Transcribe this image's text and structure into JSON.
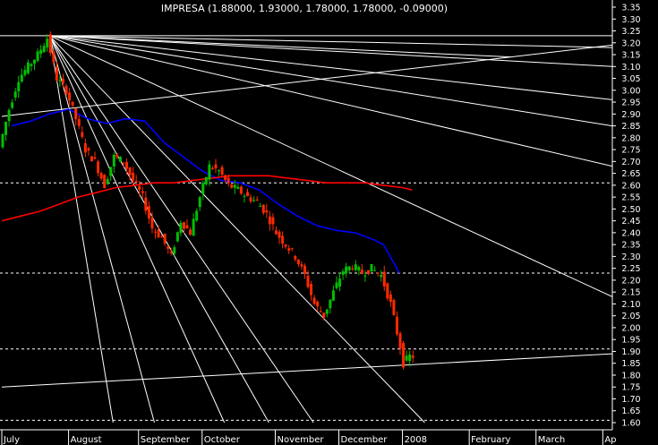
{
  "chart_data": {
    "type": "candlestick",
    "title": "IMPRESA (1.88000, 1.93000, 1.78000, 1.78000, -0.09000)",
    "xlabel": "",
    "ylabel": "",
    "ylim": [
      1.6,
      3.38
    ],
    "y_ticks": [
      "3.35",
      "3.30",
      "3.25",
      "3.20",
      "3.15",
      "3.10",
      "3.05",
      "3.00",
      "2.95",
      "2.90",
      "2.85",
      "2.80",
      "2.75",
      "2.70",
      "2.65",
      "2.60",
      "2.55",
      "2.50",
      "2.45",
      "2.40",
      "2.35",
      "2.30",
      "2.25",
      "2.20",
      "2.15",
      "2.10",
      "2.05",
      "2.00",
      "1.95",
      "1.90",
      "1.85",
      "1.80",
      "1.75",
      "1.70",
      "1.65",
      "1.60"
    ],
    "month_labels": [
      {
        "label": "July",
        "day": 0
      },
      {
        "label": "August",
        "day": 21
      },
      {
        "label": "September",
        "day": 43
      },
      {
        "label": "October",
        "day": 63
      },
      {
        "label": "November",
        "day": 86
      },
      {
        "label": "December",
        "day": 106
      },
      {
        "label": "2008",
        "day": 126
      },
      {
        "label": "February",
        "day": 147
      },
      {
        "label": "March",
        "day": 168
      },
      {
        "label": "Ap",
        "day": 189
      }
    ],
    "x_max_day": 192,
    "anchors": {
      "open": [
        [
          0,
          2.76
        ],
        [
          3,
          2.92
        ],
        [
          6,
          3.05
        ],
        [
          9,
          3.1
        ],
        [
          12,
          3.15
        ],
        [
          15,
          3.22
        ],
        [
          18,
          3.05
        ],
        [
          21,
          3.0
        ],
        [
          24,
          2.88
        ],
        [
          27,
          2.75
        ],
        [
          30,
          2.7
        ],
        [
          33,
          2.6
        ],
        [
          36,
          2.72
        ],
        [
          39,
          2.7
        ],
        [
          42,
          2.62
        ],
        [
          45,
          2.55
        ],
        [
          48,
          2.42
        ],
        [
          51,
          2.38
        ],
        [
          54,
          2.3
        ],
        [
          57,
          2.45
        ],
        [
          60,
          2.4
        ],
        [
          63,
          2.55
        ],
        [
          66,
          2.68
        ],
        [
          69,
          2.66
        ],
        [
          72,
          2.6
        ],
        [
          75,
          2.58
        ],
        [
          78,
          2.55
        ],
        [
          81,
          2.53
        ],
        [
          84,
          2.48
        ],
        [
          87,
          2.4
        ],
        [
          90,
          2.35
        ],
        [
          93,
          2.3
        ],
        [
          96,
          2.22
        ],
        [
          99,
          2.1
        ],
        [
          102,
          2.05
        ],
        [
          105,
          2.15
        ],
        [
          108,
          2.24
        ],
        [
          111,
          2.26
        ],
        [
          114,
          2.23
        ],
        [
          117,
          2.25
        ],
        [
          120,
          2.22
        ],
        [
          123,
          2.1
        ],
        [
          126,
          1.92
        ],
        [
          127,
          1.85
        ],
        [
          129,
          1.88
        ]
      ],
      "volatility": 0.035
    },
    "series": [
      {
        "name": "",
        "color": "#0000ff",
        "values": [
          [
            3,
            2.85
          ],
          [
            9,
            2.87
          ],
          [
            15,
            2.9
          ],
          [
            21,
            2.92
          ],
          [
            27,
            2.88
          ],
          [
            33,
            2.86
          ],
          [
            39,
            2.88
          ],
          [
            45,
            2.87
          ],
          [
            51,
            2.78
          ],
          [
            57,
            2.72
          ],
          [
            63,
            2.66
          ],
          [
            69,
            2.62
          ],
          [
            75,
            2.61
          ],
          [
            81,
            2.58
          ],
          [
            87,
            2.52
          ],
          [
            93,
            2.47
          ],
          [
            99,
            2.43
          ],
          [
            105,
            2.41
          ],
          [
            111,
            2.4
          ],
          [
            117,
            2.37
          ],
          [
            120,
            2.35
          ],
          [
            123,
            2.28
          ],
          [
            125,
            2.23
          ]
        ]
      },
      {
        "name": "",
        "color": "#ff0000",
        "values": [
          [
            0,
            2.45
          ],
          [
            6,
            2.47
          ],
          [
            12,
            2.49
          ],
          [
            18,
            2.52
          ],
          [
            24,
            2.55
          ],
          [
            30,
            2.57
          ],
          [
            36,
            2.59
          ],
          [
            42,
            2.6
          ],
          [
            48,
            2.61
          ],
          [
            54,
            2.61
          ],
          [
            60,
            2.62
          ],
          [
            66,
            2.63
          ],
          [
            72,
            2.64
          ],
          [
            78,
            2.64
          ],
          [
            84,
            2.64
          ],
          [
            90,
            2.63
          ],
          [
            96,
            2.62
          ],
          [
            102,
            2.61
          ],
          [
            108,
            2.61
          ],
          [
            114,
            2.61
          ],
          [
            120,
            2.6
          ],
          [
            126,
            2.59
          ],
          [
            129,
            2.58
          ]
        ]
      }
    ],
    "horizontal_lines": [
      {
        "y": 3.23,
        "style": "solid",
        "color": "#ffffff"
      },
      {
        "y": 2.61,
        "style": "dashed",
        "color": "#ffffff"
      },
      {
        "y": 2.23,
        "style": "dashed",
        "color": "#ffffff"
      },
      {
        "y": 1.91,
        "style": "dashed",
        "color": "#ffffff"
      },
      {
        "y": 1.61,
        "style": "dashed",
        "color": "#ffffff"
      }
    ],
    "trend_lines": [
      {
        "from": [
          0,
          1.75
        ],
        "to": [
          192,
          1.89
        ]
      },
      {
        "from": [
          0,
          2.89
        ],
        "to": [
          192,
          3.19
        ]
      }
    ],
    "fan": {
      "origin": [
        15,
        3.23
      ],
      "targets": [
        [
          192,
          3.1
        ],
        [
          192,
          2.96
        ],
        [
          192,
          2.85
        ],
        [
          192,
          2.68
        ],
        [
          192,
          2.13
        ],
        [
          133,
          1.6
        ],
        [
          98,
          1.6
        ],
        [
          84,
          1.6
        ],
        [
          70,
          1.6
        ],
        [
          48,
          1.6
        ],
        [
          35,
          1.6
        ]
      ],
      "rays": [
        [
          160,
          3.14
        ],
        [
          192,
          3.18
        ]
      ]
    },
    "colors": {
      "background": "#000000",
      "up_candle": "#00c000",
      "down_candle": "#ff2a00",
      "axis_text": "#ffffff",
      "grid_lines": "#ffffff"
    }
  }
}
